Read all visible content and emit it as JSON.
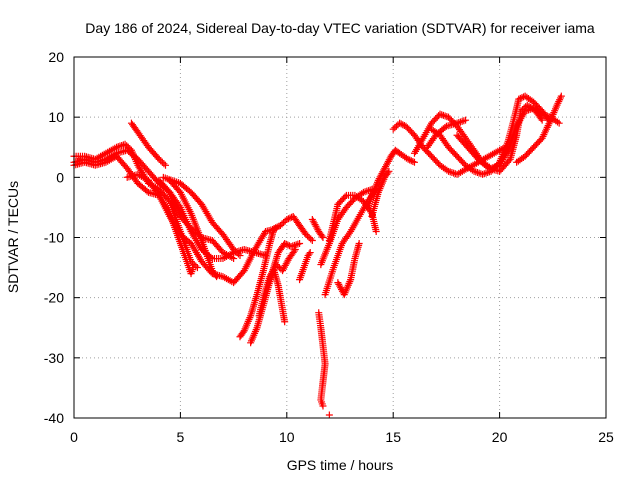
{
  "chart_data": {
    "type": "scatter",
    "title": "Day 186 of 2024, Sidereal Day-to-day VTEC variation (SDTVAR) for receiver iama",
    "xlabel": "GPS time / hours",
    "ylabel": "SDTVAR / TECUs",
    "xlim": [
      0,
      25
    ],
    "ylim": [
      -40,
      20
    ],
    "xticks": [
      0,
      5,
      10,
      15,
      20,
      25
    ],
    "yticks": [
      -40,
      -30,
      -20,
      -10,
      0,
      10,
      20
    ],
    "xtick_labels": [
      "0",
      "5",
      "10",
      "15",
      "20",
      "25"
    ],
    "ytick_labels": [
      "-40",
      "-30",
      "-20",
      "-10",
      "0",
      "10",
      "20"
    ],
    "grid": true,
    "marker": "+",
    "color": "#ff0000",
    "series": [
      {
        "name": "s1",
        "points": [
          [
            0.0,
            2.5
          ],
          [
            0.5,
            3.0
          ],
          [
            1.0,
            2.5
          ],
          [
            1.5,
            3.0
          ],
          [
            2.0,
            4.0
          ],
          [
            2.5,
            4.5
          ],
          [
            3.0,
            3.0
          ],
          [
            3.5,
            1.0
          ],
          [
            4.0,
            -1.0
          ],
          [
            4.5,
            -2.5
          ],
          [
            5.0,
            -5.0
          ],
          [
            5.5,
            -9.0
          ],
          [
            6.0,
            -12.0
          ],
          [
            6.5,
            -13.5
          ],
          [
            7.0,
            -13.5
          ],
          [
            7.5,
            -12.5
          ],
          [
            8.0,
            -12.0
          ],
          [
            8.5,
            -12.5
          ],
          [
            9.0,
            -13.0
          ]
        ]
      },
      {
        "name": "s2",
        "points": [
          [
            0.0,
            3.5
          ],
          [
            0.5,
            3.5
          ],
          [
            1.0,
            3.0
          ],
          [
            1.5,
            4.0
          ],
          [
            2.0,
            5.0
          ],
          [
            2.4,
            5.5
          ],
          [
            2.7,
            4.5
          ],
          [
            3.0,
            2.0
          ],
          [
            3.5,
            -1.0
          ],
          [
            4.0,
            -2.0
          ],
          [
            4.5,
            -4.0
          ],
          [
            5.0,
            -9.0
          ],
          [
            5.5,
            -14.0
          ],
          [
            5.8,
            -15.0
          ]
        ]
      },
      {
        "name": "s3",
        "points": [
          [
            0.0,
            2.0
          ],
          [
            0.5,
            2.5
          ],
          [
            1.0,
            2.0
          ],
          [
            1.5,
            2.5
          ],
          [
            2.0,
            3.5
          ],
          [
            2.5,
            1.5
          ],
          [
            3.0,
            -1.0
          ],
          [
            3.5,
            -2.5
          ],
          [
            4.0,
            -3.0
          ],
          [
            4.5,
            -6.0
          ],
          [
            5.0,
            -11.0
          ],
          [
            5.5,
            -16.0
          ],
          [
            5.6,
            -15.0
          ]
        ]
      },
      {
        "name": "s4",
        "points": [
          [
            2.7,
            9.0
          ],
          [
            3.0,
            7.5
          ],
          [
            3.5,
            5.0
          ],
          [
            4.0,
            3.0
          ],
          [
            4.3,
            2.0
          ]
        ]
      },
      {
        "name": "s5",
        "points": [
          [
            2.5,
            0.0
          ],
          [
            3.0,
            0.5
          ],
          [
            3.5,
            -0.5
          ],
          [
            4.0,
            -3.0
          ],
          [
            4.5,
            -6.5
          ],
          [
            5.0,
            -9.5
          ],
          [
            5.5,
            -11.0
          ],
          [
            6.0,
            -14.0
          ],
          [
            6.5,
            -16.0
          ],
          [
            7.0,
            -16.5
          ],
          [
            7.5,
            -17.5
          ],
          [
            8.0,
            -15.5
          ],
          [
            8.5,
            -12.0
          ],
          [
            9.0,
            -9.0
          ],
          [
            9.5,
            -8.5
          ]
        ]
      },
      {
        "name": "s6",
        "points": [
          [
            4.0,
            -0.5
          ],
          [
            4.5,
            -2.5
          ],
          [
            5.0,
            -6.5
          ],
          [
            5.5,
            -8.5
          ],
          [
            6.0,
            -10.0
          ],
          [
            6.5,
            -10.5
          ],
          [
            7.0,
            -12.5
          ],
          [
            7.5,
            -13.5
          ]
        ]
      },
      {
        "name": "s7",
        "points": [
          [
            4.2,
            0.0
          ],
          [
            5.0,
            -1.0
          ],
          [
            5.5,
            -2.5
          ],
          [
            6.0,
            -4.5
          ],
          [
            6.5,
            -7.5
          ],
          [
            7.0,
            -9.5
          ],
          [
            7.5,
            -12.0
          ],
          [
            7.8,
            -13.0
          ]
        ]
      },
      {
        "name": "s8",
        "points": [
          [
            4.5,
            -0.5
          ],
          [
            5.0,
            -2.5
          ],
          [
            5.5,
            -6.0
          ],
          [
            6.0,
            -10.5
          ],
          [
            6.5,
            -15.5
          ],
          [
            6.7,
            -16.5
          ]
        ]
      },
      {
        "name": "s9",
        "points": [
          [
            7.8,
            -26.5
          ],
          [
            8.0,
            -25.5
          ],
          [
            8.3,
            -23.0
          ],
          [
            8.6,
            -19.5
          ],
          [
            8.9,
            -15.5
          ],
          [
            9.2,
            -11.0
          ],
          [
            9.4,
            -8.5
          ],
          [
            9.7,
            -8.0
          ],
          [
            10.0,
            -7.0
          ],
          [
            10.3,
            -6.5
          ],
          [
            10.6,
            -8.0
          ],
          [
            10.9,
            -9.5
          ],
          [
            11.2,
            -10.5
          ]
        ]
      },
      {
        "name": "s10",
        "points": [
          [
            8.3,
            -27.5
          ],
          [
            8.6,
            -25.0
          ],
          [
            9.0,
            -20.0
          ],
          [
            9.3,
            -16.0
          ],
          [
            9.6,
            -12.5
          ],
          [
            9.9,
            -11.0
          ],
          [
            10.2,
            -11.5
          ],
          [
            10.6,
            -11.0
          ]
        ]
      },
      {
        "name": "s11",
        "points": [
          [
            8.7,
            -23.0
          ],
          [
            8.9,
            -20.0
          ],
          [
            9.2,
            -16.5
          ],
          [
            9.5,
            -14.5
          ],
          [
            9.8,
            -15.5
          ],
          [
            10.1,
            -13.5
          ],
          [
            10.4,
            -12.0
          ]
        ]
      },
      {
        "name": "s12",
        "points": [
          [
            9.4,
            -15.5
          ],
          [
            9.6,
            -18.0
          ],
          [
            9.7,
            -20.0
          ],
          [
            9.8,
            -22.0
          ],
          [
            9.9,
            -24.0
          ]
        ]
      },
      {
        "name": "s13",
        "points": [
          [
            10.6,
            -17.0
          ],
          [
            11.0,
            -13.0
          ],
          [
            11.1,
            -12.5
          ]
        ]
      },
      {
        "name": "s14",
        "points": [
          [
            11.5,
            -22.5
          ],
          [
            11.6,
            -25.0
          ],
          [
            11.7,
            -28.0
          ],
          [
            11.8,
            -31.0
          ],
          [
            11.7,
            -34.0
          ],
          [
            11.6,
            -37.0
          ],
          [
            11.7,
            -38.0
          ]
        ]
      },
      {
        "name": "s15",
        "points": [
          [
            11.2,
            -7.0
          ],
          [
            11.5,
            -9.0
          ],
          [
            11.7,
            -10.0
          ]
        ]
      },
      {
        "name": "s16",
        "points": [
          [
            11.6,
            -14.5
          ],
          [
            12.0,
            -11.0
          ],
          [
            12.4,
            -7.0
          ],
          [
            12.8,
            -5.0
          ],
          [
            13.2,
            -3.5
          ],
          [
            13.6,
            -2.5
          ],
          [
            14.0,
            -2.0
          ]
        ]
      },
      {
        "name": "s17",
        "points": [
          [
            11.8,
            -19.5
          ],
          [
            12.2,
            -15.0
          ],
          [
            12.6,
            -11.0
          ],
          [
            13.0,
            -9.0
          ],
          [
            13.4,
            -6.5
          ],
          [
            13.8,
            -4.0
          ],
          [
            14.2,
            -2.0
          ]
        ]
      },
      {
        "name": "s18",
        "points": [
          [
            12.0,
            -10.5
          ],
          [
            12.4,
            -4.5
          ],
          [
            12.8,
            -3.0
          ],
          [
            13.2,
            -3.0
          ],
          [
            13.6,
            -4.0
          ],
          [
            14.0,
            -6.0
          ],
          [
            14.2,
            -9.0
          ]
        ]
      },
      {
        "name": "s19",
        "points": [
          [
            12.4,
            -17.5
          ],
          [
            12.7,
            -19.5
          ],
          [
            13.0,
            -17.0
          ],
          [
            13.2,
            -13.5
          ],
          [
            13.4,
            -11.0
          ]
        ]
      },
      {
        "name": "s20",
        "points": [
          [
            12.0,
            -39.5
          ]
        ]
      },
      {
        "name": "s21",
        "points": [
          [
            13.8,
            -5.0
          ],
          [
            14.0,
            -3.0
          ],
          [
            14.3,
            -0.5
          ],
          [
            14.6,
            1.5
          ],
          [
            14.9,
            3.5
          ],
          [
            15.1,
            4.5
          ],
          [
            15.3,
            4.0
          ],
          [
            15.7,
            3.0
          ],
          [
            16.0,
            2.5
          ]
        ]
      },
      {
        "name": "s22",
        "points": [
          [
            14.0,
            -6.5
          ],
          [
            14.3,
            -2.5
          ],
          [
            14.6,
            0.0
          ],
          [
            14.8,
            1.0
          ]
        ]
      },
      {
        "name": "s23",
        "points": [
          [
            15.0,
            8.0
          ],
          [
            15.3,
            9.0
          ],
          [
            15.6,
            8.5
          ],
          [
            16.0,
            7.0
          ],
          [
            16.4,
            5.0
          ],
          [
            16.8,
            3.5
          ],
          [
            17.2,
            2.0
          ],
          [
            17.6,
            1.0
          ],
          [
            18.0,
            0.5
          ],
          [
            18.5,
            1.5
          ],
          [
            19.0,
            2.5
          ],
          [
            19.5,
            3.5
          ],
          [
            20.0,
            4.5
          ],
          [
            20.3,
            5.0
          ]
        ]
      },
      {
        "name": "s24",
        "points": [
          [
            16.0,
            4.0
          ],
          [
            16.4,
            6.5
          ],
          [
            16.8,
            9.0
          ],
          [
            17.2,
            10.5
          ],
          [
            17.6,
            10.0
          ],
          [
            18.0,
            8.5
          ],
          [
            18.4,
            6.5
          ],
          [
            18.8,
            4.5
          ],
          [
            19.2,
            2.5
          ],
          [
            19.6,
            1.5
          ],
          [
            20.0,
            2.0
          ],
          [
            20.4,
            4.5
          ],
          [
            20.8,
            8.5
          ],
          [
            21.2,
            11.0
          ],
          [
            21.6,
            11.5
          ],
          [
            22.0,
            10.5
          ],
          [
            22.4,
            10.0
          ],
          [
            22.8,
            9.0
          ]
        ]
      },
      {
        "name": "s25",
        "points": [
          [
            16.6,
            5.0
          ],
          [
            17.0,
            7.0
          ],
          [
            17.5,
            8.5
          ],
          [
            18.0,
            9.0
          ],
          [
            18.4,
            9.5
          ]
        ]
      },
      {
        "name": "s26",
        "points": [
          [
            16.8,
            8.0
          ],
          [
            17.2,
            7.0
          ],
          [
            17.6,
            5.0
          ],
          [
            18.0,
            3.5
          ],
          [
            18.4,
            2.0
          ],
          [
            18.8,
            1.0
          ],
          [
            19.2,
            0.5
          ],
          [
            19.6,
            1.0
          ],
          [
            20.0,
            2.5
          ],
          [
            20.4,
            6.0
          ],
          [
            20.7,
            10.0
          ],
          [
            20.9,
            13.0
          ],
          [
            21.2,
            13.5
          ],
          [
            21.6,
            12.5
          ],
          [
            22.0,
            11.0
          ],
          [
            22.3,
            9.5
          ]
        ]
      },
      {
        "name": "s27",
        "points": [
          [
            18.0,
            7.0
          ],
          [
            18.5,
            5.0
          ],
          [
            19.0,
            3.0
          ],
          [
            19.5,
            1.5
          ],
          [
            20.0,
            1.0
          ],
          [
            20.5,
            3.0
          ],
          [
            20.8,
            7.0
          ],
          [
            21.0,
            11.0
          ],
          [
            21.3,
            12.0
          ],
          [
            21.7,
            11.0
          ],
          [
            22.0,
            9.5
          ]
        ]
      },
      {
        "name": "s28",
        "points": [
          [
            20.8,
            2.5
          ],
          [
            21.2,
            3.5
          ],
          [
            21.6,
            5.0
          ],
          [
            22.0,
            6.5
          ],
          [
            22.4,
            9.5
          ],
          [
            22.7,
            12.0
          ],
          [
            22.9,
            13.5
          ]
        ]
      }
    ]
  }
}
